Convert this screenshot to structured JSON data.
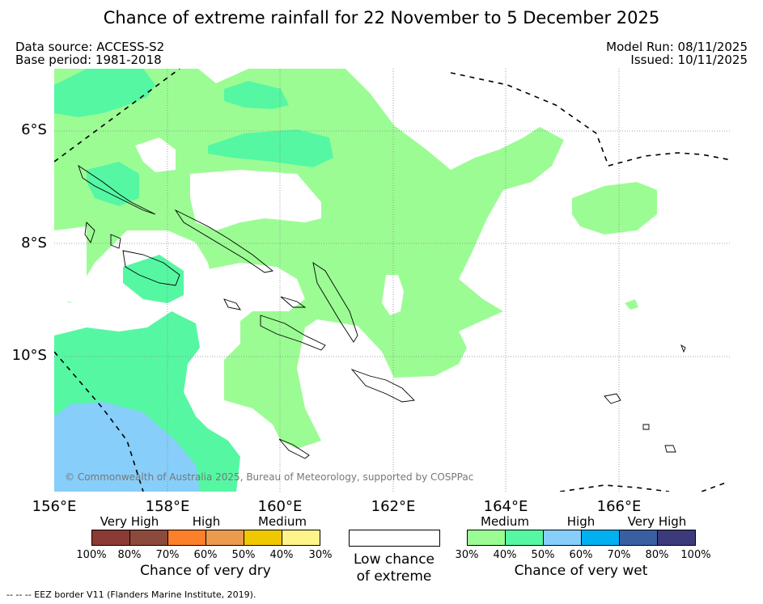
{
  "title": "Chance of extreme rainfall for 22 November to 5 December 2025",
  "meta": {
    "data_source": "Data source: ACCESS-S2",
    "base_period": "Base period: 1981-2018",
    "model_run": "Model Run: 08/11/2025",
    "issued": "Issued: 10/11/2025"
  },
  "map": {
    "longitude_labels": [
      "156°E",
      "158°E",
      "160°E",
      "162°E",
      "164°E",
      "166°E"
    ],
    "latitude_labels": [
      "6°S",
      "8°S",
      "10°S"
    ],
    "copyright": "© Commonwealth of Australia 2025, Bureau of Meteorology, supported by COSPPac",
    "colors": {
      "wet_30": "#9cfc94",
      "wet_40": "#55f7a3",
      "wet_50": "#87cefa",
      "eez_line": "#000000",
      "coast": "#000000"
    }
  },
  "legend": {
    "dry": {
      "categories": [
        "Very High",
        "High",
        "Medium"
      ],
      "colors": [
        "#8b3a34",
        "#8b4a3c",
        "#fe7f2a",
        "#ec9a4e",
        "#f0c800",
        "#fef48c"
      ],
      "ticks": [
        "100%",
        "80%",
        "70%",
        "60%",
        "50%",
        "40%",
        "30%"
      ],
      "title": "Chance of very dry"
    },
    "low": {
      "label_line1": "Low chance",
      "label_line2": "of extreme"
    },
    "wet": {
      "categories": [
        "Medium",
        "High",
        "Very High"
      ],
      "colors": [
        "#9cfc94",
        "#55f7a3",
        "#87cefa",
        "#00b0f0",
        "#3a5fa0",
        "#3c3a7a"
      ],
      "ticks": [
        "30%",
        "40%",
        "50%",
        "60%",
        "70%",
        "80%",
        "100%"
      ],
      "title": "Chance of very wet"
    }
  },
  "footnote": "--  --  -- EEZ border V11 (Flanders Marine Institute, 2019)."
}
